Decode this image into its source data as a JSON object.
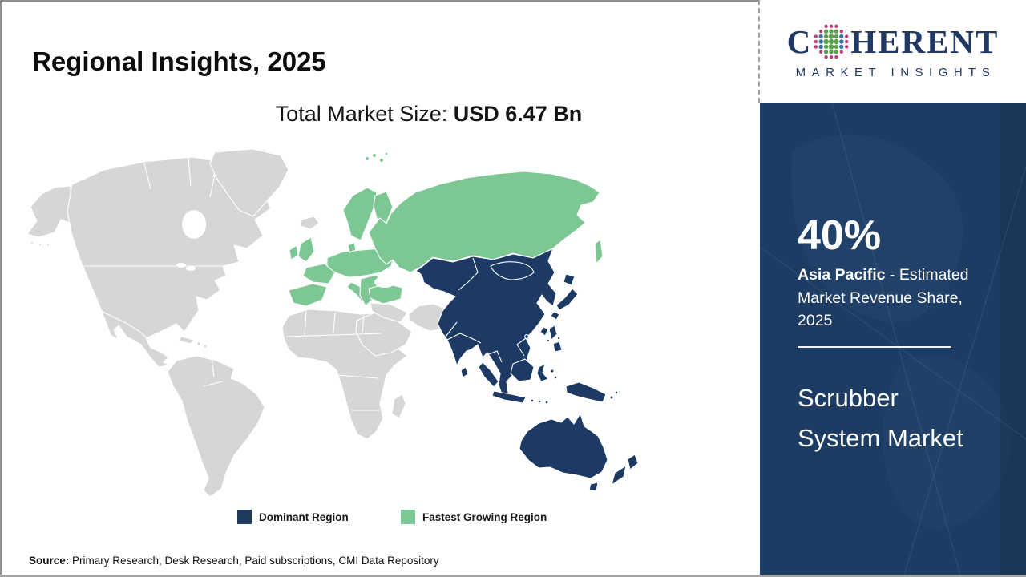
{
  "header": {
    "title": "Regional Insights, 2025",
    "market_size_label": "Total Market Size: ",
    "market_size_value": "USD 6.47 Bn"
  },
  "logo": {
    "brand_prefix": "C",
    "brand_suffix": "HERENT",
    "tagline": "MARKET INSIGHTS"
  },
  "map": {
    "legend": [
      {
        "label": "Dominant Region",
        "color": "#1c3a63"
      },
      {
        "label": "Fastest Growing Region",
        "color": "#7dc795"
      }
    ]
  },
  "sidebar": {
    "share_value": "40%",
    "share_region": "Asia Pacific",
    "share_rest": " - Estimated Market Revenue Share, 2025",
    "market_name": "Scrubber System Market"
  },
  "source": {
    "label": "Source:",
    "text": " Primary Research, Desk Research, Paid subscriptions, CMI Data Repository"
  },
  "colors": {
    "dominant_navy": "#1c3a63",
    "growing_green": "#7dc795",
    "land_grey": "#d6d6d6",
    "sidebar_navy": "#1d3c64",
    "brand_navy": "#1f3864",
    "globe_green": "#58a349",
    "globe_blue": "#3a6fa8",
    "globe_pink": "#bf3d7f"
  }
}
